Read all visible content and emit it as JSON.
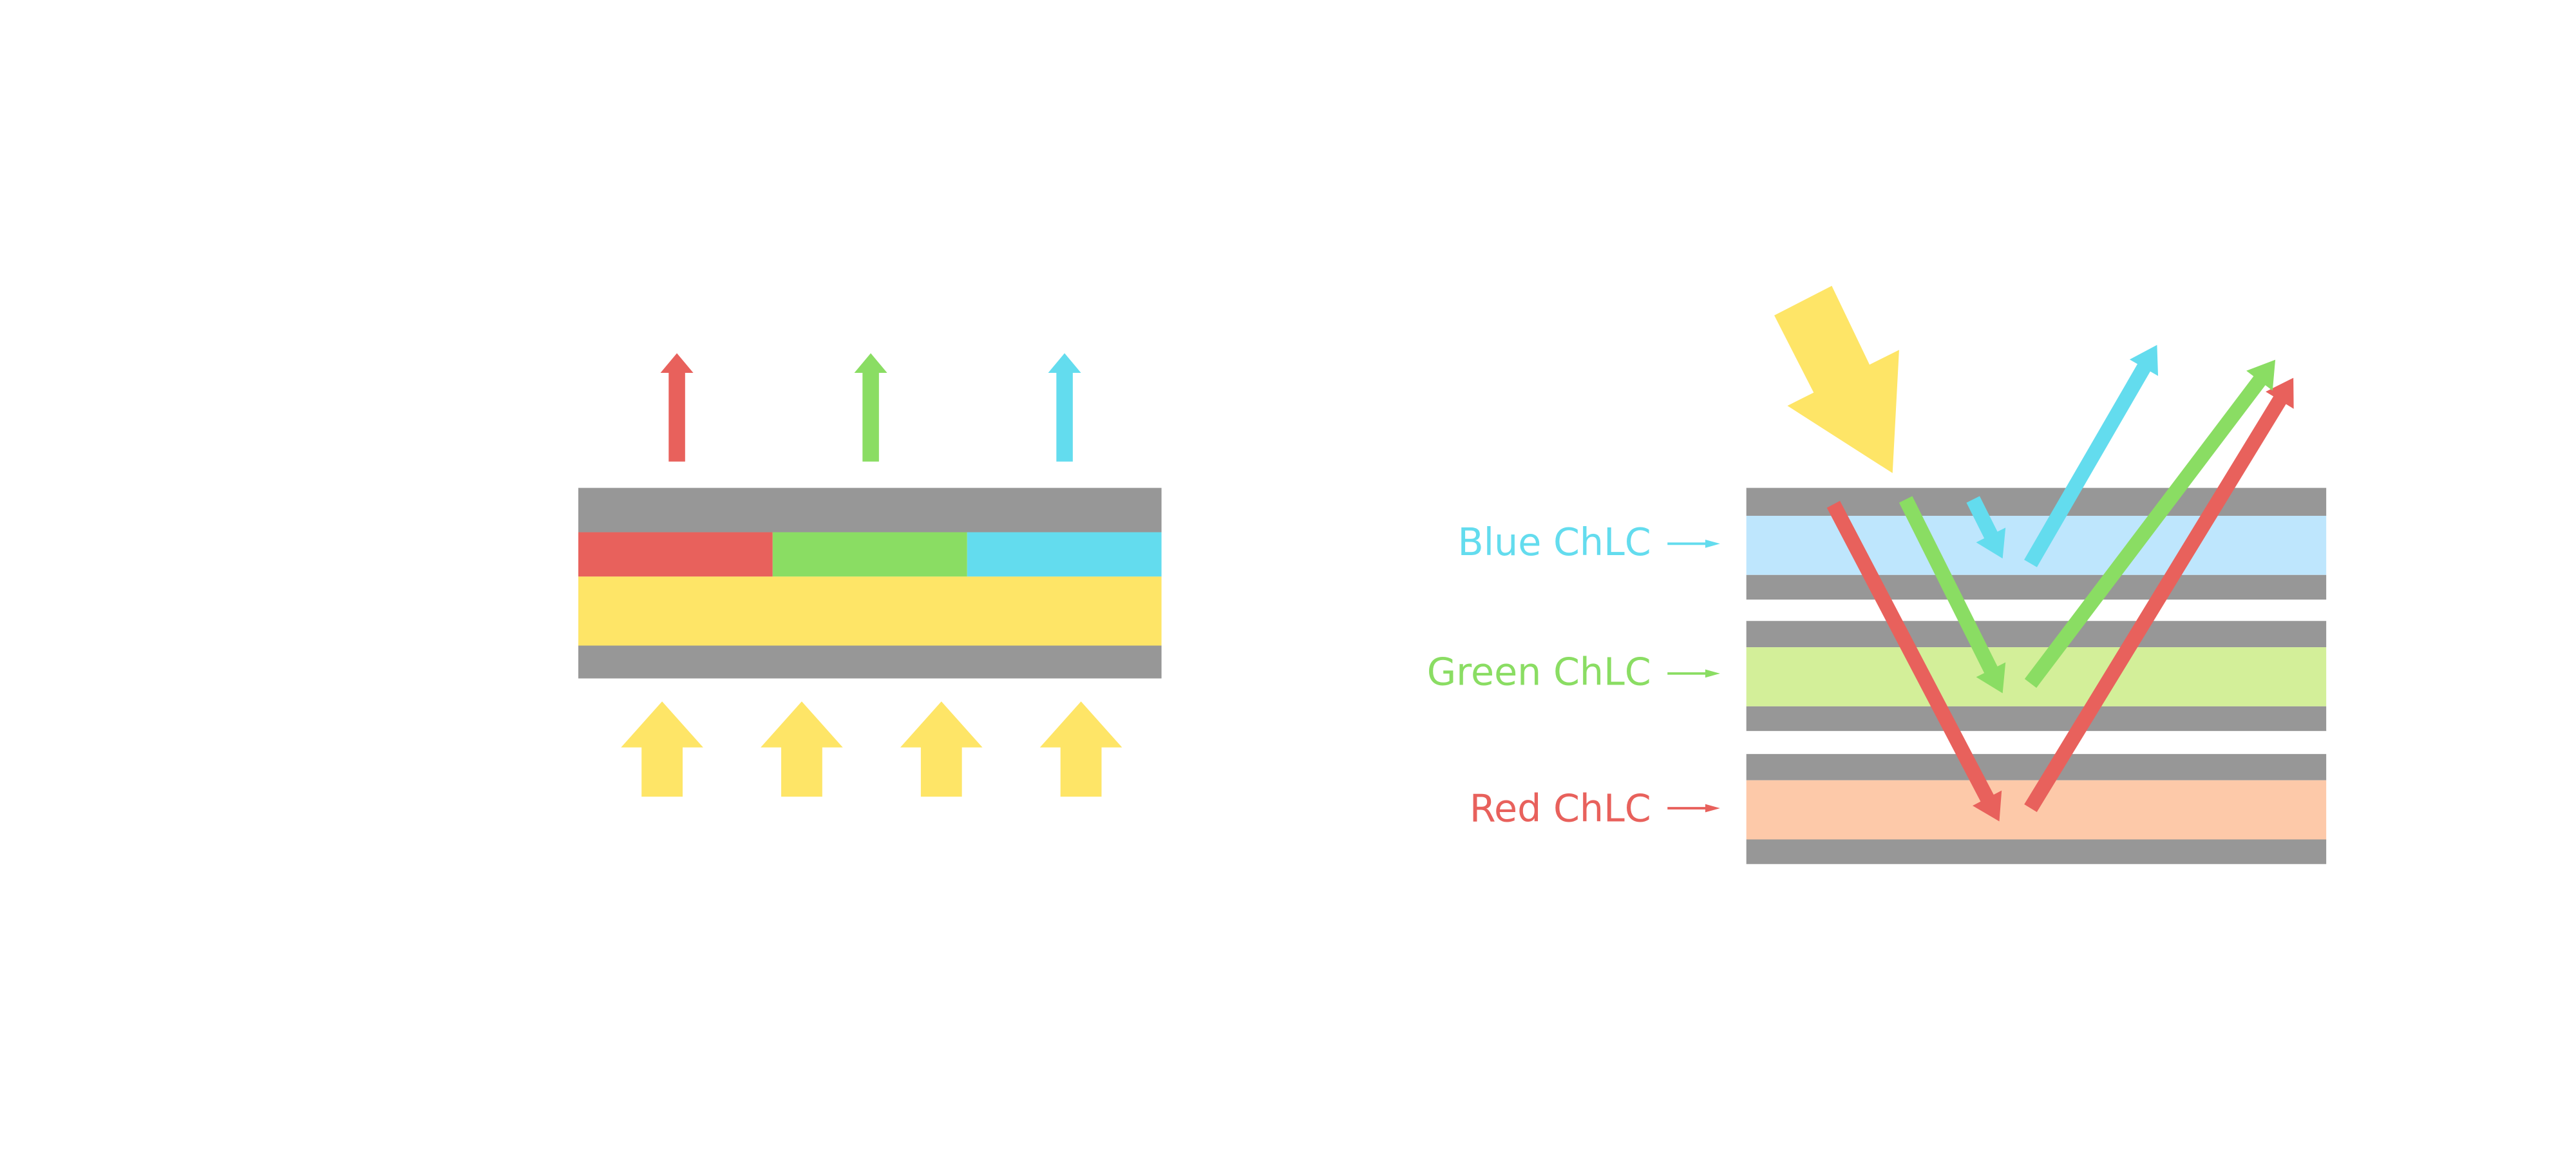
{
  "colors": {
    "red": "#E8615C",
    "green": "#8ADD63",
    "blue": "#63DCEE",
    "yellow": "#FEE567",
    "gray": "#979797",
    "blue_layer": "#BEE6FD",
    "green_layer": "#D3EF99",
    "red_layer": "#FDC9A9"
  },
  "right_diagram": {
    "labels": [
      {
        "text": "Blue ChLC",
        "color": "#63DCEE"
      },
      {
        "text": "Green ChLC",
        "color": "#8ADD63"
      },
      {
        "text": "Red ChLC",
        "color": "#E8615C"
      }
    ]
  }
}
